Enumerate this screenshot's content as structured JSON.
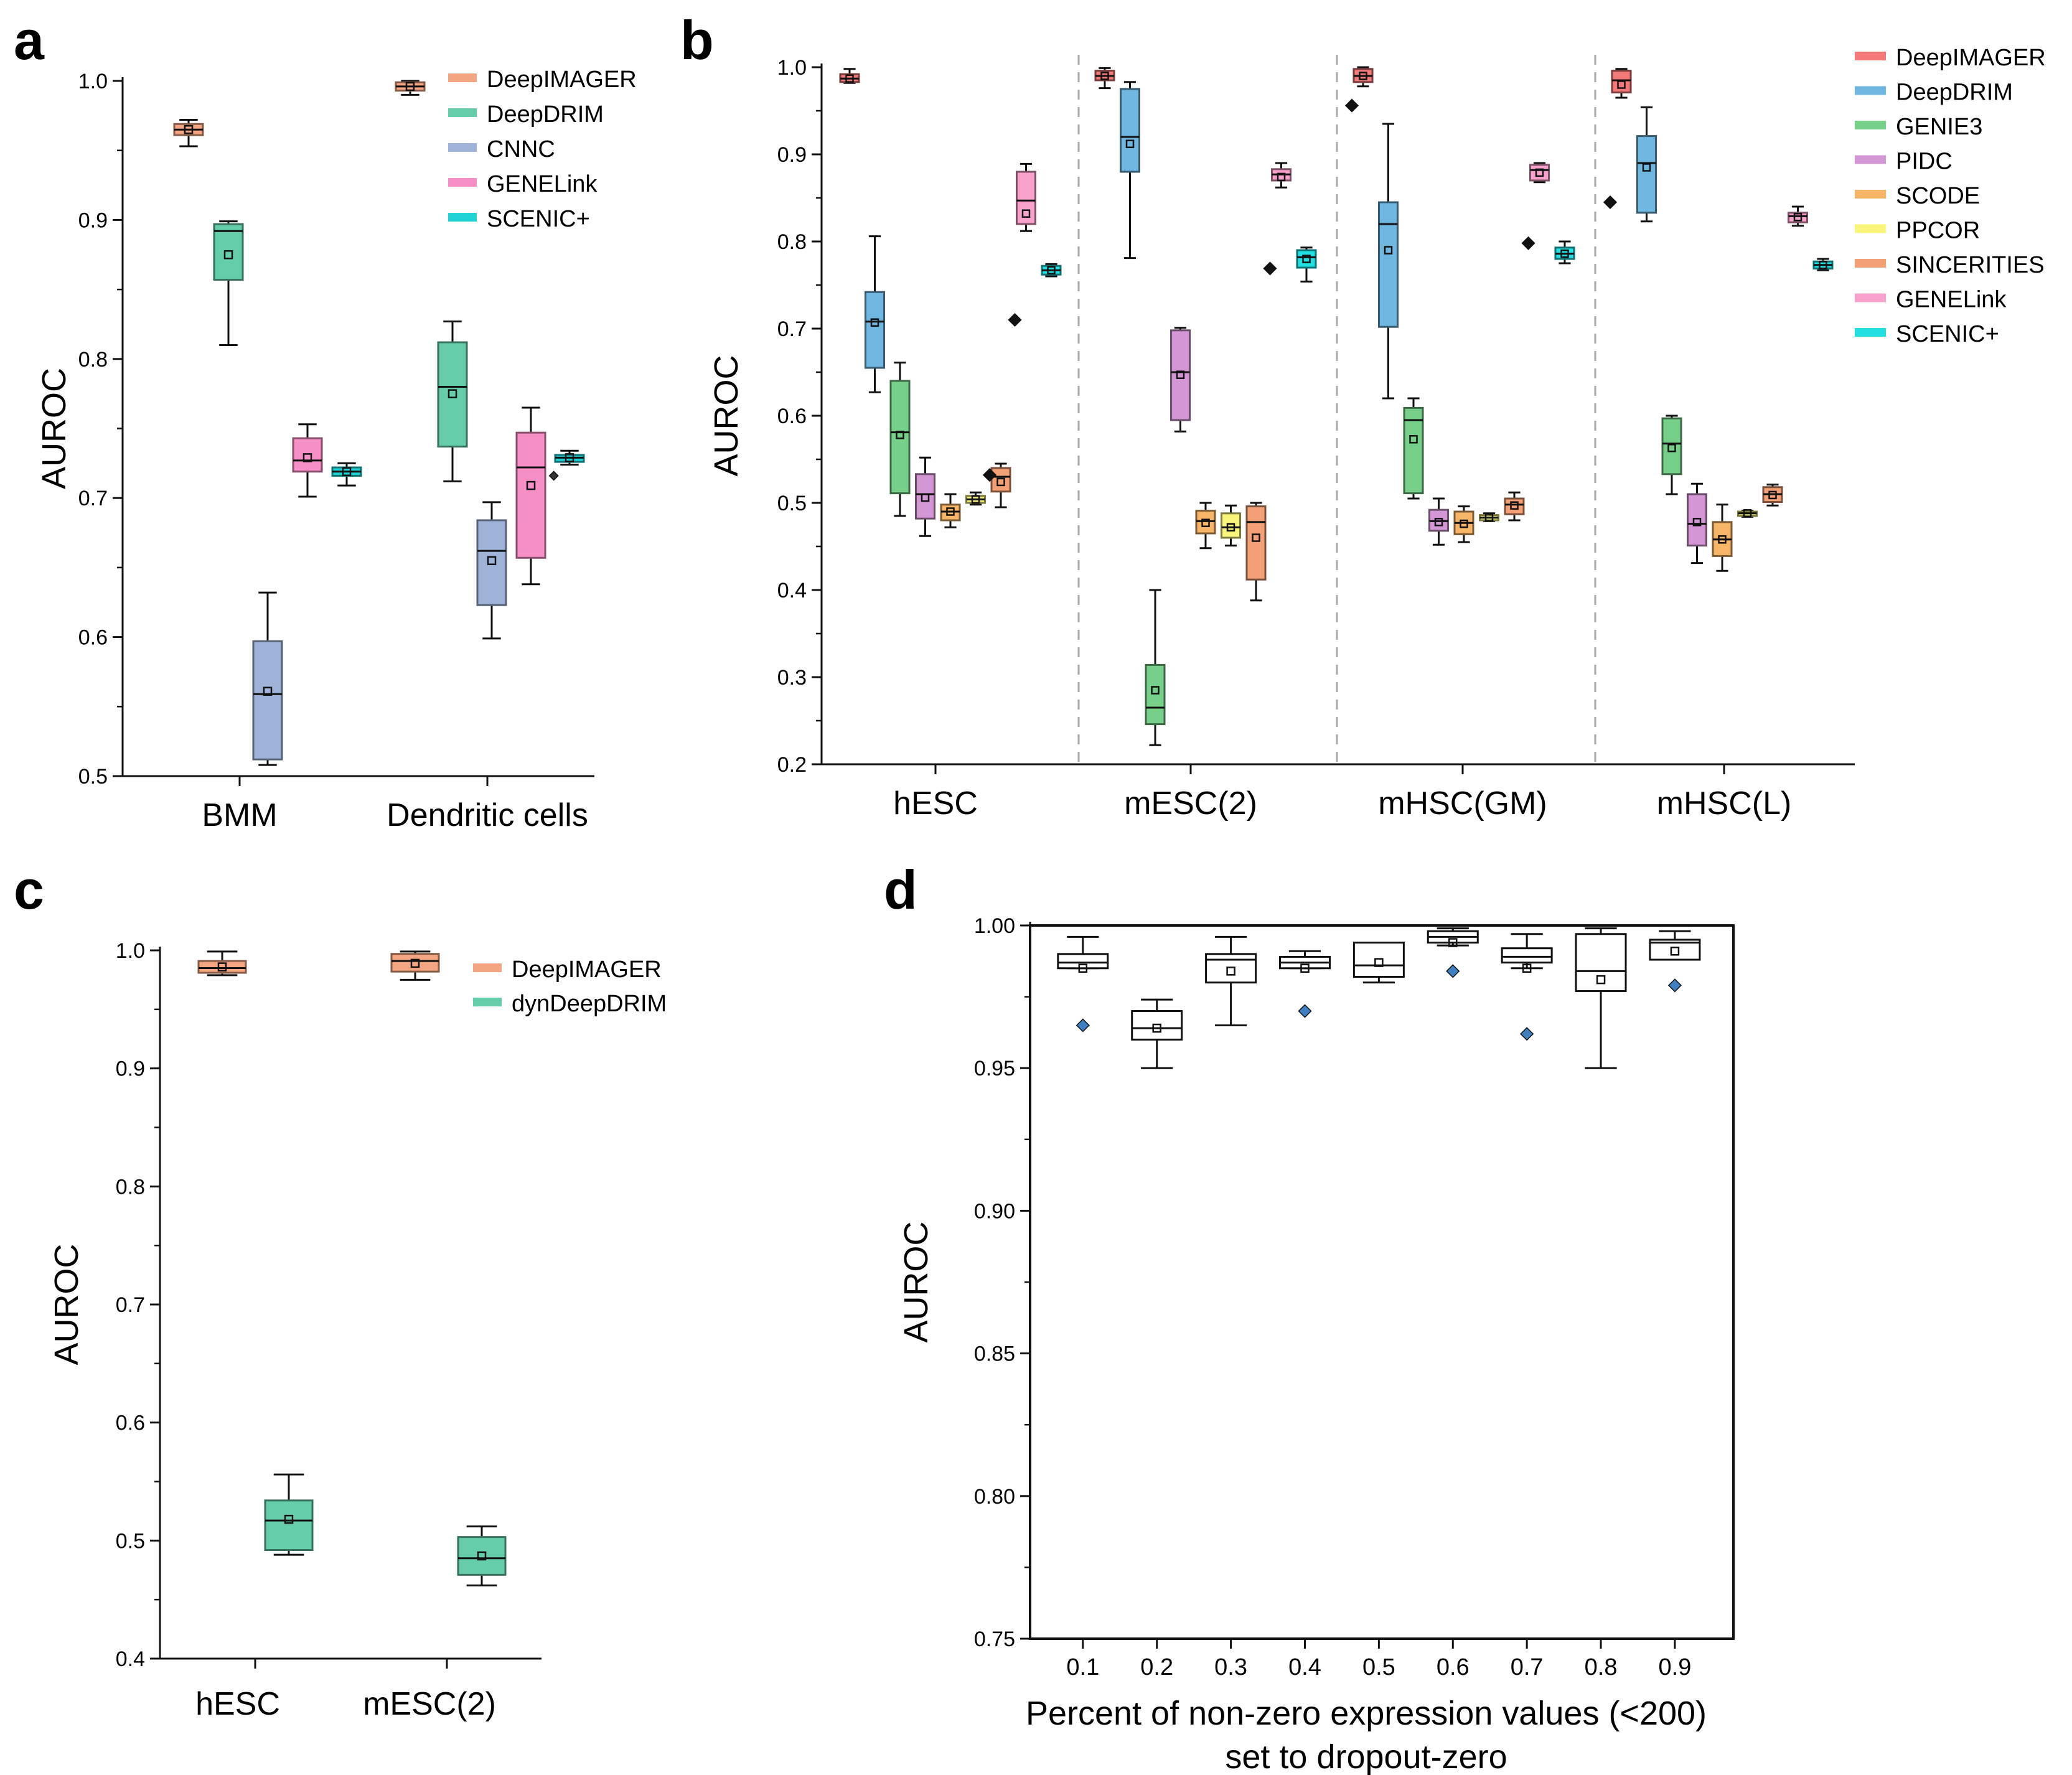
{
  "chart_data": [
    {
      "id": "a",
      "type": "box",
      "panel_label": "a",
      "ylabel": "AUROC",
      "xlabel": "",
      "ylim": [
        0.5,
        1.0
      ],
      "yticks": [
        "0.5",
        "0.6",
        "0.7",
        "0.8",
        "0.9",
        "1.0"
      ],
      "groups": [
        "BMM",
        "Dendritic cells"
      ],
      "legend": [
        {
          "name": "DeepIMAGER",
          "color": "#f4a582"
        },
        {
          "name": "DeepDRIM",
          "color": "#66cdaa"
        },
        {
          "name": "CNNC",
          "color": "#9fb3d9"
        },
        {
          "name": "GENELink",
          "color": "#f78fc7"
        },
        {
          "name": "SCENIC+",
          "color": "#22d3d6"
        }
      ],
      "series": [
        {
          "name": "DeepIMAGER",
          "boxes": [
            {
              "group": "BMM",
              "q1": 0.961,
              "median": 0.965,
              "q3": 0.969,
              "min": 0.953,
              "max": 0.972,
              "mean": 0.965
            },
            {
              "group": "Dendritic cells",
              "q1": 0.993,
              "median": 0.996,
              "q3": 0.999,
              "min": 0.99,
              "max": 1.0,
              "mean": 0.996
            }
          ]
        },
        {
          "name": "DeepDRIM",
          "boxes": [
            {
              "group": "BMM",
              "q1": 0.857,
              "median": 0.892,
              "q3": 0.897,
              "min": 0.81,
              "max": 0.899,
              "mean": 0.875
            },
            {
              "group": "Dendritic cells",
              "q1": 0.737,
              "median": 0.78,
              "q3": 0.812,
              "min": 0.712,
              "max": 0.827,
              "mean": 0.775
            }
          ]
        },
        {
          "name": "CNNC",
          "boxes": [
            {
              "group": "BMM",
              "q1": 0.512,
              "median": 0.559,
              "q3": 0.597,
              "min": 0.508,
              "max": 0.632,
              "mean": 0.561
            },
            {
              "group": "Dendritic cells",
              "q1": 0.623,
              "median": 0.662,
              "q3": 0.684,
              "min": 0.599,
              "max": 0.697,
              "mean": 0.655
            }
          ]
        },
        {
          "name": "GENELink",
          "boxes": [
            {
              "group": "BMM",
              "q1": 0.719,
              "median": 0.727,
              "q3": 0.743,
              "min": 0.701,
              "max": 0.753,
              "mean": 0.729
            },
            {
              "group": "Dendritic cells",
              "q1": 0.657,
              "median": 0.722,
              "q3": 0.747,
              "min": 0.638,
              "max": 0.765,
              "mean": 0.709
            }
          ]
        },
        {
          "name": "SCENIC+",
          "boxes": [
            {
              "group": "BMM",
              "q1": 0.716,
              "median": 0.719,
              "q3": 0.722,
              "min": 0.709,
              "max": 0.725,
              "mean": 0.719
            },
            {
              "group": "Dendritic cells",
              "q1": 0.726,
              "median": 0.729,
              "q3": 0.731,
              "min": 0.724,
              "max": 0.734,
              "mean": 0.729,
              "outliers": [
                0.716
              ]
            }
          ]
        }
      ]
    },
    {
      "id": "b",
      "type": "box",
      "panel_label": "b",
      "ylabel": "AUROC",
      "xlabel": "",
      "ylim": [
        0.2,
        1.0
      ],
      "yticks": [
        "0.2",
        "0.3",
        "0.4",
        "0.5",
        "0.6",
        "0.7",
        "0.8",
        "0.9",
        "1.0"
      ],
      "groups": [
        "hESC",
        "mESC(2)",
        "mHSC(GM)",
        "mHSC(L)"
      ],
      "legend": [
        {
          "name": "DeepIMAGER",
          "color": "#f47a7a"
        },
        {
          "name": "DeepDRIM",
          "color": "#6fb6e0"
        },
        {
          "name": "GENIE3",
          "color": "#77d08a"
        },
        {
          "name": "PIDC",
          "color": "#d497d6"
        },
        {
          "name": "SCODE",
          "color": "#f7b667"
        },
        {
          "name": "PPCOR",
          "color": "#f8f57a"
        },
        {
          "name": "SINCERITIES",
          "color": "#f4a076"
        },
        {
          "name": "GENELink",
          "color": "#f7a1cc"
        },
        {
          "name": "SCENIC+",
          "color": "#22dfe2"
        }
      ],
      "series": [
        {
          "name": "DeepIMAGER",
          "boxes": [
            {
              "group": "hESC",
              "q1": 0.983,
              "median": 0.987,
              "q3": 0.992,
              "min": 0.982,
              "max": 0.998,
              "mean": 0.987
            },
            {
              "group": "mESC(2)",
              "q1": 0.985,
              "median": 0.99,
              "q3": 0.996,
              "min": 0.976,
              "max": 0.999,
              "mean": 0.99
            },
            {
              "group": "mHSC(GM)",
              "q1": 0.983,
              "median": 0.99,
              "q3": 0.998,
              "min": 0.978,
              "max": 1.0,
              "mean": 0.99,
              "outliers": [
                0.956
              ]
            },
            {
              "group": "mHSC(L)",
              "q1": 0.971,
              "median": 0.985,
              "q3": 0.996,
              "min": 0.965,
              "max": 0.998,
              "mean": 0.98,
              "outliers": [
                0.845
              ]
            }
          ]
        },
        {
          "name": "DeepDRIM",
          "boxes": [
            {
              "group": "hESC",
              "q1": 0.655,
              "median": 0.708,
              "q3": 0.742,
              "min": 0.627,
              "max": 0.806,
              "mean": 0.707
            },
            {
              "group": "mESC(2)",
              "q1": 0.88,
              "median": 0.92,
              "q3": 0.975,
              "min": 0.781,
              "max": 0.983,
              "mean": 0.912
            },
            {
              "group": "mHSC(GM)",
              "q1": 0.702,
              "median": 0.82,
              "q3": 0.845,
              "min": 0.62,
              "max": 0.935,
              "mean": 0.79
            },
            {
              "group": "mHSC(L)",
              "q1": 0.833,
              "median": 0.89,
              "q3": 0.921,
              "min": 0.823,
              "max": 0.954,
              "mean": 0.885
            }
          ]
        },
        {
          "name": "GENIE3",
          "boxes": [
            {
              "group": "hESC",
              "q1": 0.511,
              "median": 0.581,
              "q3": 0.64,
              "min": 0.485,
              "max": 0.661,
              "mean": 0.578
            },
            {
              "group": "mESC(2)",
              "q1": 0.246,
              "median": 0.265,
              "q3": 0.314,
              "min": 0.222,
              "max": 0.4,
              "mean": 0.285
            },
            {
              "group": "mHSC(GM)",
              "q1": 0.511,
              "median": 0.595,
              "q3": 0.609,
              "min": 0.505,
              "max": 0.62,
              "mean": 0.573
            },
            {
              "group": "mHSC(L)",
              "q1": 0.533,
              "median": 0.568,
              "q3": 0.597,
              "min": 0.51,
              "max": 0.6,
              "mean": 0.563
            }
          ]
        },
        {
          "name": "PIDC",
          "boxes": [
            {
              "group": "hESC",
              "q1": 0.482,
              "median": 0.51,
              "q3": 0.533,
              "min": 0.462,
              "max": 0.552,
              "mean": 0.506
            },
            {
              "group": "mESC(2)",
              "q1": 0.595,
              "median": 0.65,
              "q3": 0.698,
              "min": 0.582,
              "max": 0.701,
              "mean": 0.647
            },
            {
              "group": "mHSC(GM)",
              "q1": 0.468,
              "median": 0.479,
              "q3": 0.492,
              "min": 0.452,
              "max": 0.505,
              "mean": 0.478
            },
            {
              "group": "mHSC(L)",
              "q1": 0.451,
              "median": 0.476,
              "q3": 0.51,
              "min": 0.431,
              "max": 0.522,
              "mean": 0.478
            }
          ]
        },
        {
          "name": "SCODE",
          "boxes": [
            {
              "group": "hESC",
              "q1": 0.48,
              "median": 0.49,
              "q3": 0.498,
              "min": 0.472,
              "max": 0.51,
              "mean": 0.49
            },
            {
              "group": "mESC(2)",
              "q1": 0.465,
              "median": 0.479,
              "q3": 0.491,
              "min": 0.448,
              "max": 0.5,
              "mean": 0.477
            },
            {
              "group": "mHSC(GM)",
              "q1": 0.464,
              "median": 0.477,
              "q3": 0.49,
              "min": 0.455,
              "max": 0.496,
              "mean": 0.476
            },
            {
              "group": "mHSC(L)",
              "q1": 0.439,
              "median": 0.458,
              "q3": 0.478,
              "min": 0.422,
              "max": 0.498,
              "mean": 0.458
            }
          ]
        },
        {
          "name": "PPCOR",
          "boxes": [
            {
              "group": "hESC",
              "q1": 0.5,
              "median": 0.504,
              "q3": 0.508,
              "min": 0.498,
              "max": 0.512,
              "mean": 0.504
            },
            {
              "group": "mESC(2)",
              "q1": 0.46,
              "median": 0.472,
              "q3": 0.488,
              "min": 0.451,
              "max": 0.497,
              "mean": 0.472
            },
            {
              "group": "mHSC(GM)",
              "q1": 0.48,
              "median": 0.483,
              "q3": 0.486,
              "min": 0.479,
              "max": 0.488,
              "mean": 0.483
            },
            {
              "group": "mHSC(L)",
              "q1": 0.485,
              "median": 0.488,
              "q3": 0.49,
              "min": 0.484,
              "max": 0.491,
              "mean": 0.488
            }
          ]
        },
        {
          "name": "SINCERITIES",
          "boxes": [
            {
              "group": "hESC",
              "q1": 0.513,
              "median": 0.53,
              "q3": 0.54,
              "min": 0.495,
              "max": 0.545,
              "mean": 0.524,
              "outliers": [
                0.532
              ]
            },
            {
              "group": "mESC(2)",
              "q1": 0.412,
              "median": 0.478,
              "q3": 0.496,
              "min": 0.388,
              "max": 0.5,
              "mean": 0.46
            },
            {
              "group": "mHSC(GM)",
              "q1": 0.487,
              "median": 0.498,
              "q3": 0.505,
              "min": 0.48,
              "max": 0.512,
              "mean": 0.497
            },
            {
              "group": "mHSC(L)",
              "q1": 0.501,
              "median": 0.51,
              "q3": 0.518,
              "min": 0.497,
              "max": 0.521,
              "mean": 0.509
            }
          ]
        },
        {
          "name": "GENELink",
          "boxes": [
            {
              "group": "hESC",
              "q1": 0.82,
              "median": 0.847,
              "q3": 0.88,
              "min": 0.812,
              "max": 0.889,
              "mean": 0.832,
              "outliers": [
                0.71
              ]
            },
            {
              "group": "mESC(2)",
              "q1": 0.87,
              "median": 0.877,
              "q3": 0.883,
              "min": 0.862,
              "max": 0.89,
              "mean": 0.874,
              "outliers": [
                0.769
              ]
            },
            {
              "group": "mHSC(GM)",
              "q1": 0.87,
              "median": 0.882,
              "q3": 0.888,
              "min": 0.868,
              "max": 0.89,
              "mean": 0.879,
              "outliers": [
                0.798
              ]
            },
            {
              "group": "mHSC(L)",
              "q1": 0.822,
              "median": 0.829,
              "q3": 0.833,
              "min": 0.818,
              "max": 0.84,
              "mean": 0.828
            }
          ]
        },
        {
          "name": "SCENIC+",
          "boxes": [
            {
              "group": "hESC",
              "q1": 0.762,
              "median": 0.767,
              "q3": 0.772,
              "min": 0.76,
              "max": 0.774,
              "mean": 0.767
            },
            {
              "group": "mESC(2)",
              "q1": 0.77,
              "median": 0.782,
              "q3": 0.79,
              "min": 0.754,
              "max": 0.793,
              "mean": 0.78
            },
            {
              "group": "mHSC(GM)",
              "q1": 0.78,
              "median": 0.786,
              "q3": 0.793,
              "min": 0.775,
              "max": 0.8,
              "mean": 0.786
            },
            {
              "group": "mHSC(L)",
              "q1": 0.769,
              "median": 0.773,
              "q3": 0.777,
              "min": 0.767,
              "max": 0.78,
              "mean": 0.773
            }
          ]
        }
      ]
    },
    {
      "id": "c",
      "type": "box",
      "panel_label": "c",
      "ylabel": "AUROC",
      "xlabel": "",
      "ylim": [
        0.4,
        1.0
      ],
      "yticks": [
        "0.4",
        "0.5",
        "0.6",
        "0.7",
        "0.8",
        "0.9",
        "1.0"
      ],
      "groups": [
        "hESC",
        "mESC(2)"
      ],
      "legend": [
        {
          "name": "DeepIMAGER",
          "color": "#f4a582"
        },
        {
          "name": "dynDeepDRIM",
          "color": "#66cdaa"
        }
      ],
      "series": [
        {
          "name": "DeepIMAGER",
          "boxes": [
            {
              "group": "hESC",
              "q1": 0.981,
              "median": 0.985,
              "q3": 0.991,
              "min": 0.979,
              "max": 0.999,
              "mean": 0.986
            },
            {
              "group": "mESC(2)",
              "q1": 0.982,
              "median": 0.991,
              "q3": 0.997,
              "min": 0.975,
              "max": 0.999,
              "mean": 0.989
            }
          ]
        },
        {
          "name": "dynDeepDRIM",
          "boxes": [
            {
              "group": "hESC",
              "q1": 0.492,
              "median": 0.517,
              "q3": 0.534,
              "min": 0.488,
              "max": 0.556,
              "mean": 0.518
            },
            {
              "group": "mESC(2)",
              "q1": 0.471,
              "median": 0.485,
              "q3": 0.503,
              "min": 0.462,
              "max": 0.512,
              "mean": 0.487
            }
          ]
        }
      ]
    },
    {
      "id": "d",
      "type": "box",
      "panel_label": "d",
      "ylabel": "AUROC",
      "xlabel": "Percent of non-zero expression values (<200)",
      "xlabel2": "set to dropout-zero",
      "ylim": [
        0.75,
        1.0
      ],
      "yticks": [
        "0.75",
        "0.80",
        "0.85",
        "0.90",
        "0.95",
        "1.00"
      ],
      "categories": [
        "0.1",
        "0.2",
        "0.3",
        "0.4",
        "0.5",
        "0.6",
        "0.7",
        "0.8",
        "0.9"
      ],
      "outlier_color": "#3f7fbf",
      "boxes": [
        {
          "category": "0.1",
          "q1": 0.985,
          "median": 0.987,
          "q3": 0.99,
          "min": 0.985,
          "max": 0.996,
          "mean": 0.985,
          "outliers": [
            0.965
          ]
        },
        {
          "category": "0.2",
          "q1": 0.96,
          "median": 0.964,
          "q3": 0.97,
          "min": 0.95,
          "max": 0.974,
          "mean": 0.964
        },
        {
          "category": "0.3",
          "q1": 0.98,
          "median": 0.988,
          "q3": 0.99,
          "min": 0.965,
          "max": 0.996,
          "mean": 0.984
        },
        {
          "category": "0.4",
          "q1": 0.985,
          "median": 0.987,
          "q3": 0.989,
          "min": 0.985,
          "max": 0.991,
          "mean": 0.985,
          "outliers": [
            0.97
          ]
        },
        {
          "category": "0.5",
          "q1": 0.982,
          "median": 0.986,
          "q3": 0.994,
          "min": 0.98,
          "max": 0.994,
          "mean": 0.987
        },
        {
          "category": "0.6",
          "q1": 0.994,
          "median": 0.996,
          "q3": 0.998,
          "min": 0.993,
          "max": 0.999,
          "mean": 0.994,
          "outliers": [
            0.984
          ]
        },
        {
          "category": "0.7",
          "q1": 0.987,
          "median": 0.989,
          "q3": 0.992,
          "min": 0.985,
          "max": 0.997,
          "mean": 0.985,
          "outliers": [
            0.962
          ]
        },
        {
          "category": "0.8",
          "q1": 0.977,
          "median": 0.984,
          "q3": 0.997,
          "min": 0.95,
          "max": 0.999,
          "mean": 0.981
        },
        {
          "category": "0.9",
          "q1": 0.988,
          "median": 0.994,
          "q3": 0.995,
          "min": 0.988,
          "max": 0.998,
          "mean": 0.991,
          "outliers": [
            0.979
          ]
        }
      ]
    }
  ]
}
